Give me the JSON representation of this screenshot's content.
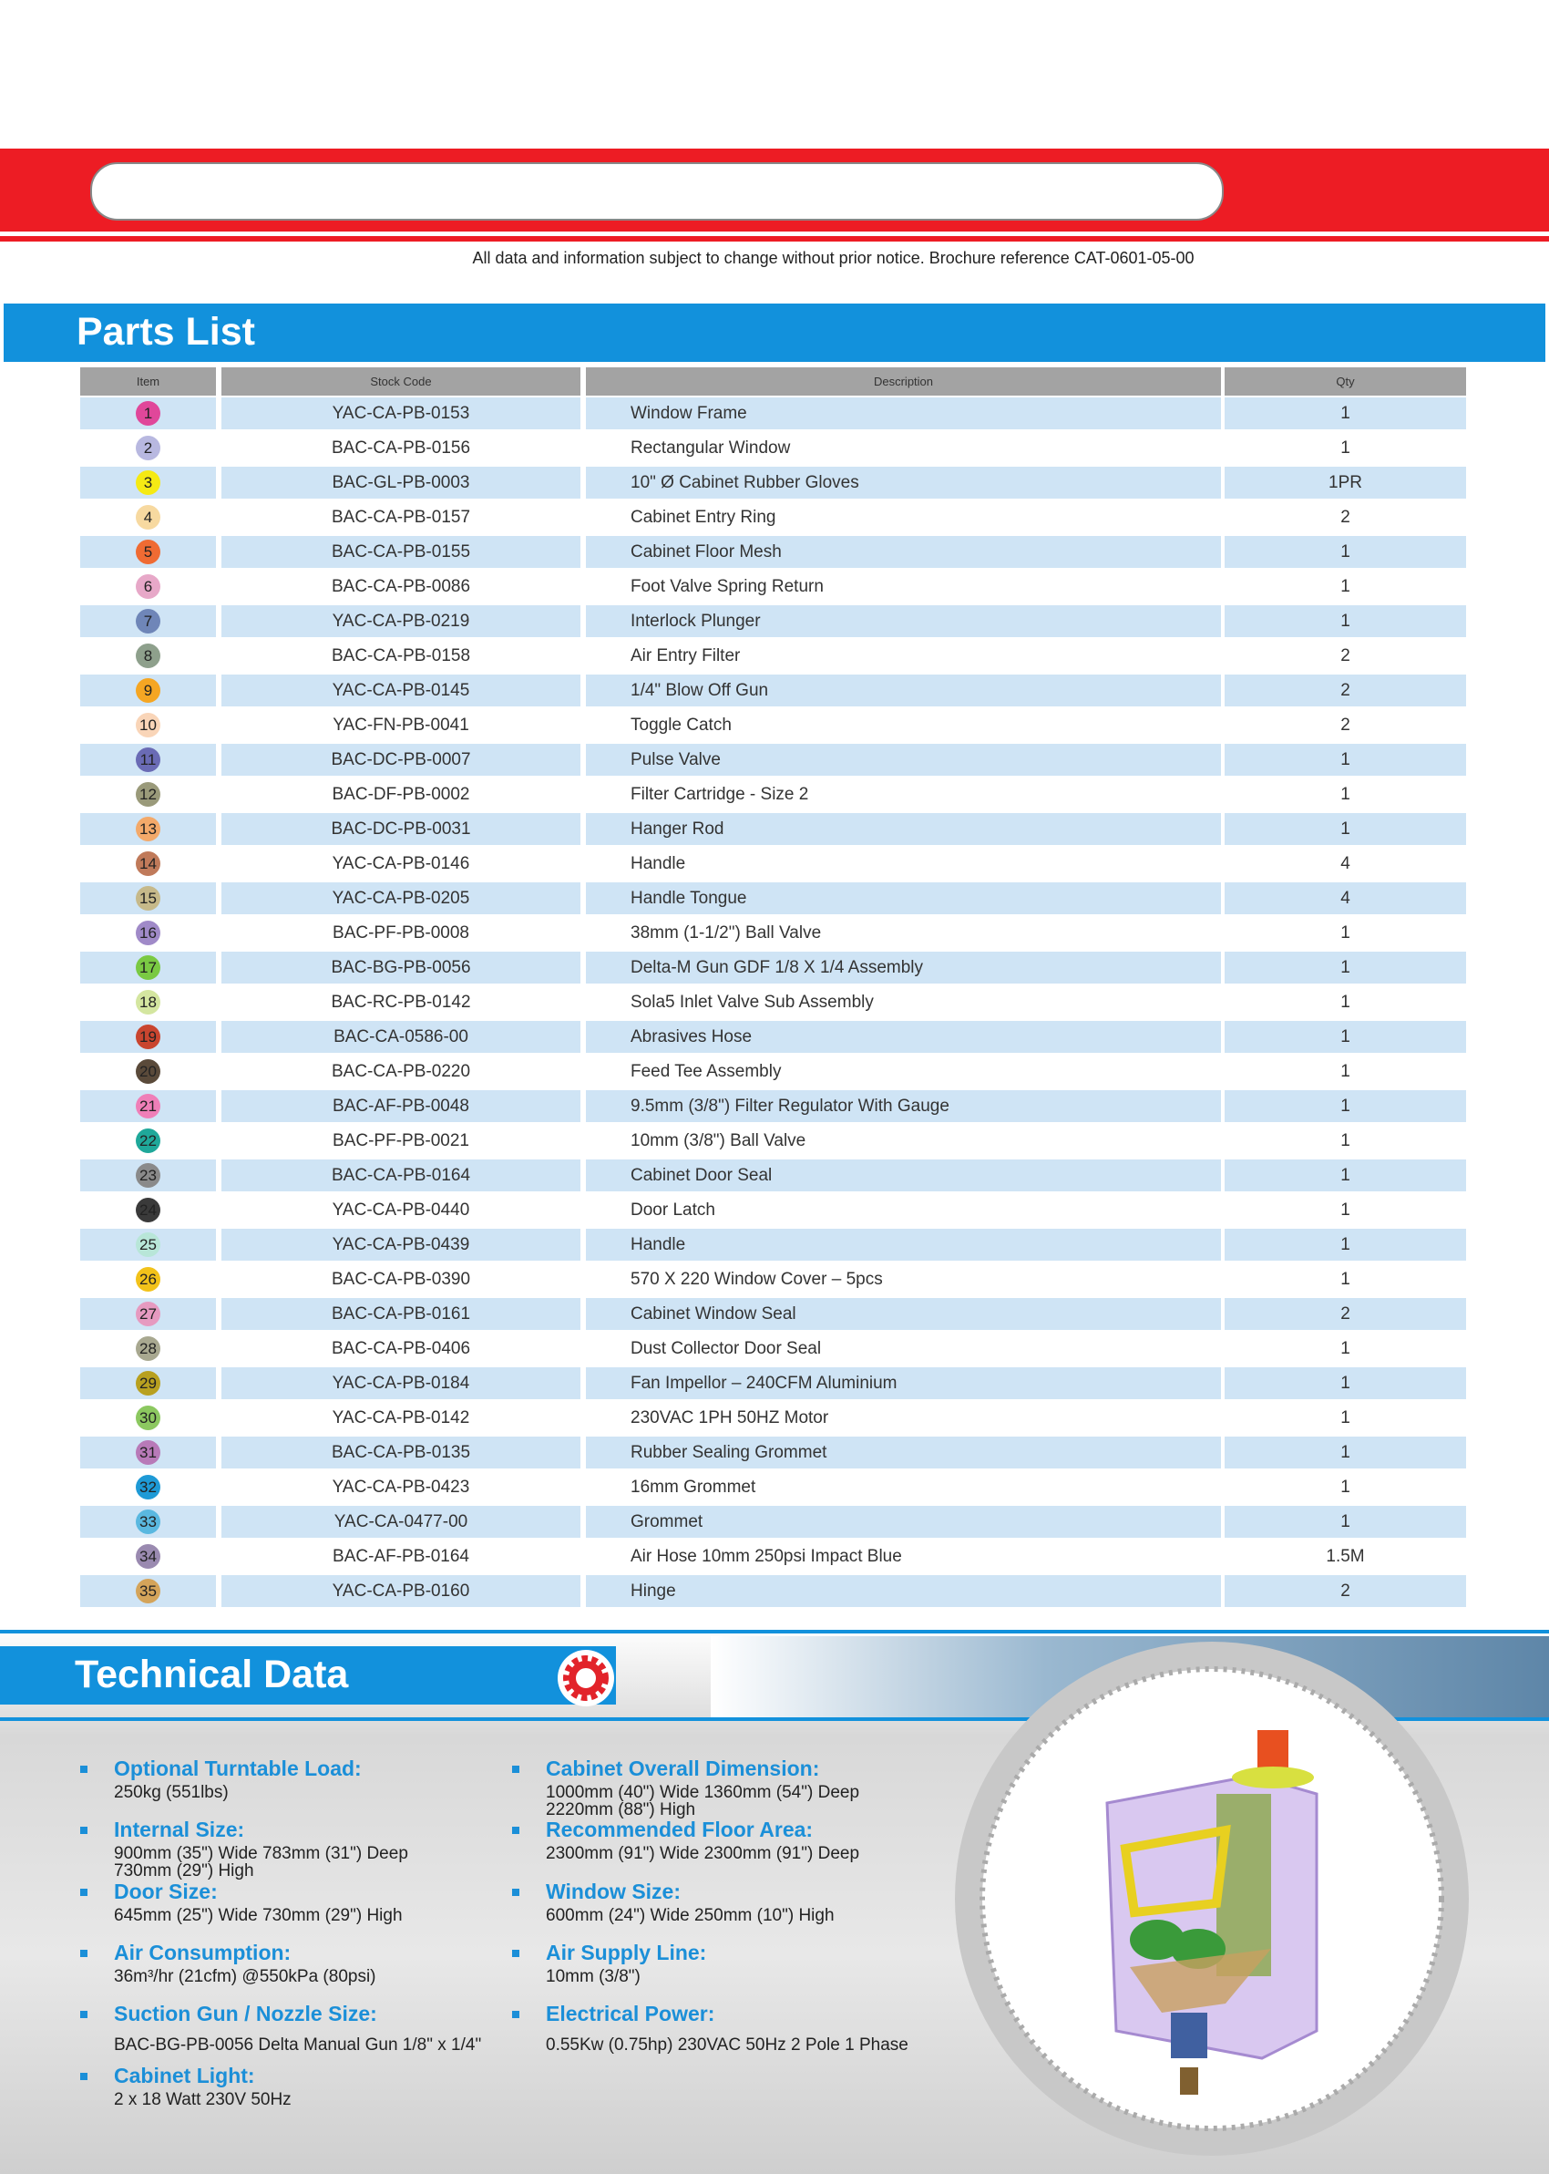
{
  "notice": "All data and information subject to change without prior notice. Brochure reference  CAT-0601-05-00",
  "parts_list": {
    "title": "Parts List",
    "headers": [
      "Item",
      "Stock Code",
      "Description",
      "Qty"
    ],
    "rows": [
      {
        "item": "1",
        "color": "#e0479a",
        "stock": "YAC-CA-PB-0153",
        "description": "Window Frame",
        "qty": "1"
      },
      {
        "item": "2",
        "color": "#b8b8e0",
        "stock": "BAC-CA-PB-0156",
        "description": "Rectangular Window",
        "qty": "1"
      },
      {
        "item": "3",
        "color": "#f5ea14",
        "stock": "BAC-GL-PB-0003",
        "description": "10\" Ø Cabinet Rubber Gloves",
        "qty": "1PR"
      },
      {
        "item": "4",
        "color": "#f7d9a0",
        "stock": "BAC-CA-PB-0157",
        "description": "Cabinet Entry Ring",
        "qty": "2"
      },
      {
        "item": "5",
        "color": "#ef6b33",
        "stock": "BAC-CA-PB-0155",
        "description": "Cabinet Floor Mesh",
        "qty": "1"
      },
      {
        "item": "6",
        "color": "#e7a8c8",
        "stock": "BAC-CA-PB-0086",
        "description": "Foot Valve Spring Return",
        "qty": "1"
      },
      {
        "item": "7",
        "color": "#6f86b8",
        "stock": "YAC-CA-PB-0219",
        "description": "Interlock Plunger",
        "qty": "1"
      },
      {
        "item": "8",
        "color": "#8ea08c",
        "stock": "BAC-CA-PB-0158",
        "description": "Air Entry Filter",
        "qty": "2"
      },
      {
        "item": "9",
        "color": "#f5a623",
        "stock": "YAC-CA-PB-0145",
        "description": "1/4\" Blow Off Gun",
        "qty": "2"
      },
      {
        "item": "10",
        "color": "#f9d5b8",
        "stock": "YAC-FN-PB-0041",
        "description": "Toggle Catch",
        "qty": "2"
      },
      {
        "item": "11",
        "color": "#6a6bb5",
        "stock": "BAC-DC-PB-0007",
        "description": "Pulse Valve",
        "qty": "1"
      },
      {
        "item": "12",
        "color": "#9a9a7a",
        "stock": "BAC-DF-PB-0002",
        "description": "Filter Cartridge  - Size 2",
        "qty": "1"
      },
      {
        "item": "13",
        "color": "#f3a96a",
        "stock": "BAC-DC-PB-0031",
        "description": "Hanger Rod",
        "qty": "1"
      },
      {
        "item": "14",
        "color": "#c07a5a",
        "stock": "YAC-CA-PB-0146",
        "description": "Handle",
        "qty": "4"
      },
      {
        "item": "15",
        "color": "#c6b98a",
        "stock": "YAC-CA-PB-0205",
        "description": "Handle Tongue",
        "qty": "4"
      },
      {
        "item": "16",
        "color": "#a08ac8",
        "stock": "BAC-PF-PB-0008",
        "description": "38mm (1-1/2\") Ball Valve",
        "qty": "1"
      },
      {
        "item": "17",
        "color": "#7ac943",
        "stock": "BAC-BG-PB-0056",
        "description": "Delta-M Gun GDF 1/8 X 1/4 Assembly",
        "qty": "1"
      },
      {
        "item": "18",
        "color": "#d4e6a0",
        "stock": "BAC-RC-PB-0142",
        "description": "Sola5 Inlet Valve Sub Assembly",
        "qty": "1"
      },
      {
        "item": "19",
        "color": "#c9452f",
        "stock": "BAC-CA-0586-00",
        "description": "Abrasives Hose",
        "qty": "1"
      },
      {
        "item": "20",
        "color": "#5a4a3a",
        "stock": "BAC-CA-PB-0220",
        "description": "Feed Tee Assembly",
        "qty": "1"
      },
      {
        "item": "21",
        "color": "#ef7fb8",
        "stock": "BAC-AF-PB-0048",
        "description": " 9.5mm (3/8\") Filter Regulator With Gauge",
        "qty": "1"
      },
      {
        "item": "22",
        "color": "#1fa89a",
        "stock": "BAC-PF-PB-0021",
        "description": "10mm (3/8\") Ball Valve",
        "qty": "1"
      },
      {
        "item": "23",
        "color": "#8a8a8a",
        "stock": "BAC-CA-PB-0164",
        "description": "Cabinet Door Seal",
        "qty": "1"
      },
      {
        "item": "24",
        "color": "#3a3a3a",
        "stock": "YAC-CA-PB-0440",
        "description": "Door Latch",
        "qty": "1"
      },
      {
        "item": "25",
        "color": "#b8e6d8",
        "stock": "YAC-CA-PB-0439",
        "description": "Handle",
        "qty": "1"
      },
      {
        "item": "26",
        "color": "#f2c21a",
        "stock": "BAC-CA-PB-0390",
        "description": "570 X 220 Window Cover – 5pcs",
        "qty": "1"
      },
      {
        "item": "27",
        "color": "#e69ac0",
        "stock": "BAC-CA-PB-0161",
        "description": "Cabinet Window Seal",
        "qty": "2"
      },
      {
        "item": "28",
        "color": "#a8a890",
        "stock": "BAC-CA-PB-0406",
        "description": "Dust Collector Door Seal",
        "qty": "1"
      },
      {
        "item": "29",
        "color": "#b8a020",
        "stock": "YAC-CA-PB-0184",
        "description": "Fan Impellor – 240CFM Aluminium",
        "qty": "1"
      },
      {
        "item": "30",
        "color": "#8cc860",
        "stock": "YAC-CA-PB-0142",
        "description": "230VAC 1PH 50HZ Motor",
        "qty": "1"
      },
      {
        "item": "31",
        "color": "#b87ab8",
        "stock": "BAC-CA-PB-0135",
        "description": "Rubber Sealing Grommet",
        "qty": "1"
      },
      {
        "item": "32",
        "color": "#1e9ad6",
        "stock": "YAC-CA-PB-0423",
        "description": "16mm Grommet",
        "qty": "1"
      },
      {
        "item": "33",
        "color": "#5ab8e0",
        "stock": "YAC-CA-0477-00",
        "description": "Grommet",
        "qty": "1"
      },
      {
        "item": "34",
        "color": "#9a8ab0",
        "stock": "BAC-AF-PB-0164",
        "description": "Air Hose 10mm 250psi Impact Blue",
        "qty": "1.5M"
      },
      {
        "item": "35",
        "color": "#d4a45a",
        "stock": "YAC-CA-PB-0160",
        "description": "Hinge",
        "qty": "2"
      }
    ]
  },
  "technical_data": {
    "title": "Technical Data",
    "left": [
      {
        "label": "Optional Turntable Load:",
        "lines": [
          "250kg (551lbs)"
        ]
      },
      {
        "label": "Internal Size:",
        "lines": [
          "900mm (35\") Wide 783mm (31\") Deep",
          "730mm (29\") High"
        ]
      },
      {
        "label": "Door Size:",
        "lines": [
          "645mm (25\") Wide 730mm (29\") High"
        ]
      },
      {
        "label": "Air Consumption:",
        "lines": [
          "36m³/hr (21cfm) @550kPa (80psi)"
        ]
      },
      {
        "label": "Suction Gun / Nozzle Size:",
        "lines": [
          "BAC-BG-PB-0056 Delta Manual Gun 1/8\" x 1/4\""
        ]
      },
      {
        "label": "Cabinet Light:",
        "lines": [
          "2 x 18 Watt 230V 50Hz"
        ]
      }
    ],
    "right": [
      {
        "label": "Cabinet Overall Dimension:",
        "lines": [
          "1000mm (40\") Wide 1360mm (54\") Deep",
          "2220mm (88\") High"
        ]
      },
      {
        "label": "Recommended Floor Area:",
        "lines": [
          "2300mm (91\") Wide 2300mm (91\") Deep"
        ]
      },
      {
        "label": "Window Size:",
        "lines": [
          "600mm (24\") Wide 250mm (10\") High"
        ]
      },
      {
        "label": "Air Supply Line:",
        "lines": [
          "10mm (3/8\")"
        ]
      },
      {
        "label": "Electrical Power:",
        "lines": [
          "0.55Kw (0.75hp) 230VAC 50Hz 2 Pole 1 Phase"
        ]
      }
    ]
  }
}
